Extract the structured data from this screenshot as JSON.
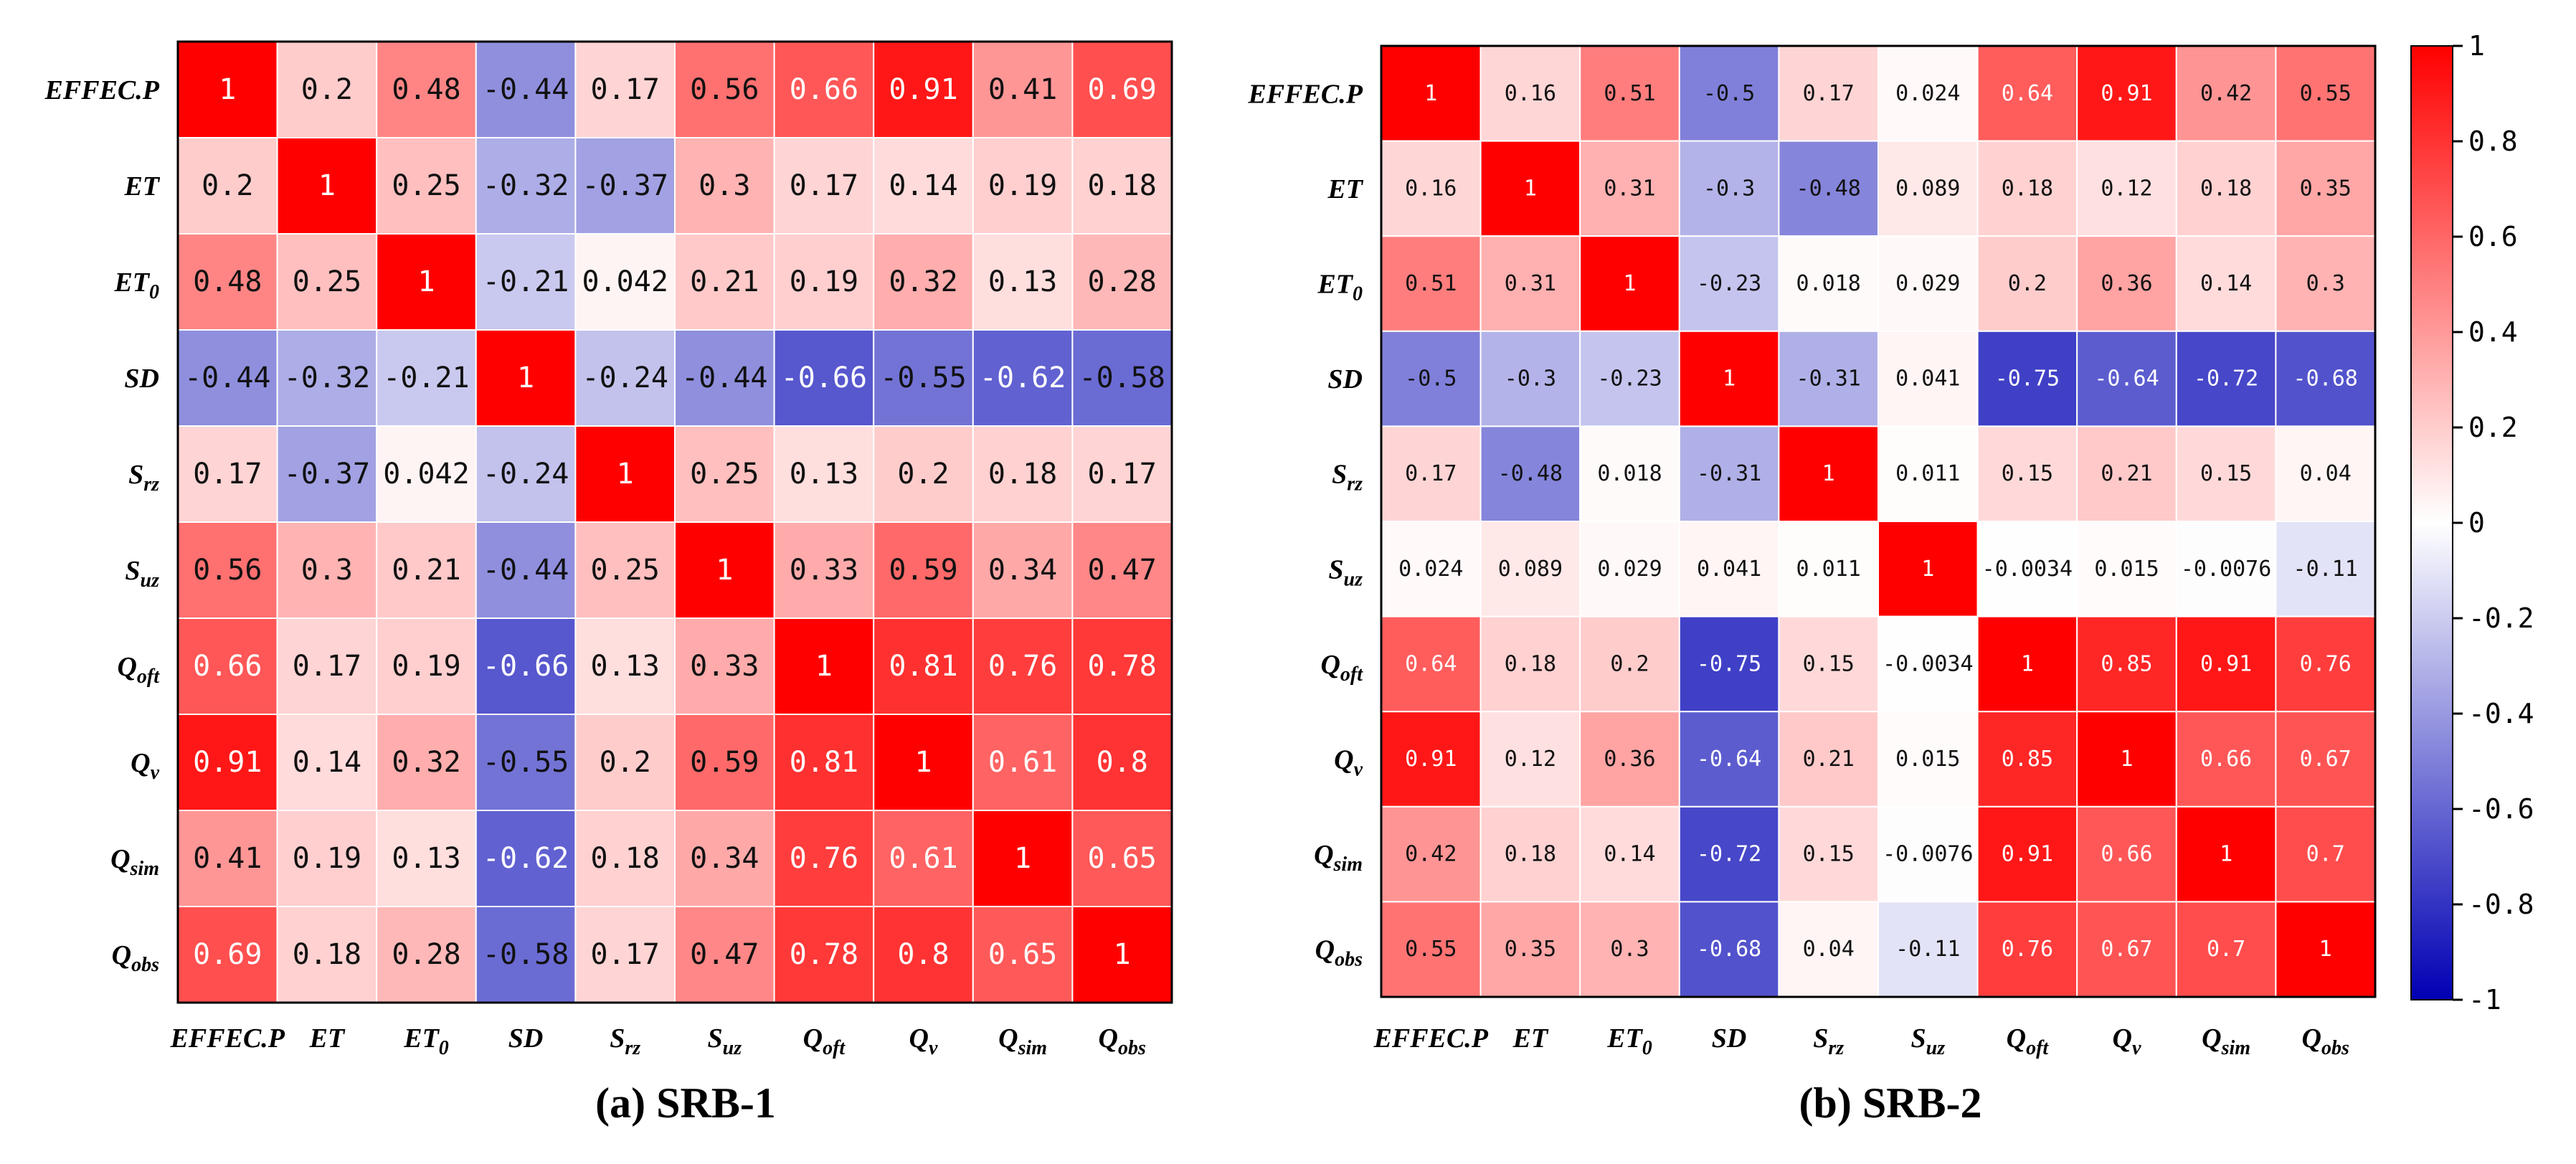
{
  "chart_data": [
    {
      "type": "heatmap",
      "id": "srb1",
      "title": "(a) SRB-1",
      "row_labels": [
        "EFFEC.P",
        "ET",
        "ET0",
        "SD",
        "Srz",
        "Suz",
        "Qoft",
        "Qv",
        "Qsim",
        "Qobs"
      ],
      "col_labels": [
        "EFFEC.P",
        "ET",
        "ET0",
        "SD",
        "Srz",
        "Suz",
        "Qoft",
        "Qv",
        "Qsim",
        "Qobs"
      ],
      "values": [
        [
          1,
          0.2,
          0.48,
          -0.44,
          0.17,
          0.56,
          0.66,
          0.91,
          0.41,
          0.69
        ],
        [
          0.2,
          1,
          0.25,
          -0.32,
          -0.37,
          0.3,
          0.17,
          0.14,
          0.19,
          0.18
        ],
        [
          0.48,
          0.25,
          1,
          -0.21,
          0.042,
          0.21,
          0.19,
          0.32,
          0.13,
          0.28
        ],
        [
          -0.44,
          -0.32,
          -0.21,
          1,
          -0.24,
          -0.44,
          -0.66,
          -0.55,
          -0.62,
          -0.58
        ],
        [
          0.17,
          -0.37,
          0.042,
          -0.24,
          1,
          0.25,
          0.13,
          0.2,
          0.18,
          0.17
        ],
        [
          0.56,
          0.3,
          0.21,
          -0.44,
          0.25,
          1,
          0.33,
          0.59,
          0.34,
          0.47
        ],
        [
          0.66,
          0.17,
          0.19,
          -0.66,
          0.13,
          0.33,
          1,
          0.81,
          0.76,
          0.78
        ],
        [
          0.91,
          0.14,
          0.32,
          -0.55,
          0.2,
          0.59,
          0.81,
          1,
          0.61,
          0.8
        ],
        [
          0.41,
          0.19,
          0.13,
          -0.62,
          0.18,
          0.34,
          0.76,
          0.61,
          1,
          0.65
        ],
        [
          0.69,
          0.18,
          0.28,
          -0.58,
          0.17,
          0.47,
          0.78,
          0.8,
          0.65,
          1
        ]
      ],
      "vmin": -1,
      "vmax": 1
    },
    {
      "type": "heatmap",
      "id": "srb2",
      "title": "(b) SRB-2",
      "row_labels": [
        "EFFEC.P",
        "ET",
        "ET0",
        "SD",
        "Srz",
        "Suz",
        "Qoft",
        "Qv",
        "Qsim",
        "Qobs"
      ],
      "col_labels": [
        "EFFEC.P",
        "ET",
        "ET0",
        "SD",
        "Srz",
        "Suz",
        "Qoft",
        "Qv",
        "Qsim",
        "Qobs"
      ],
      "values": [
        [
          1,
          0.16,
          0.51,
          -0.5,
          0.17,
          0.024,
          0.64,
          0.91,
          0.42,
          0.55
        ],
        [
          0.16,
          1,
          0.31,
          -0.3,
          -0.48,
          0.089,
          0.18,
          0.12,
          0.18,
          0.35
        ],
        [
          0.51,
          0.31,
          1,
          -0.23,
          0.018,
          0.029,
          0.2,
          0.36,
          0.14,
          0.3
        ],
        [
          -0.5,
          -0.3,
          -0.23,
          1,
          -0.31,
          0.041,
          -0.75,
          -0.64,
          -0.72,
          -0.68
        ],
        [
          0.17,
          -0.48,
          0.018,
          -0.31,
          1,
          0.011,
          0.15,
          0.21,
          0.15,
          0.04
        ],
        [
          0.024,
          0.089,
          0.029,
          0.041,
          0.011,
          1,
          -0.0034,
          0.015,
          -0.0076,
          -0.11
        ],
        [
          0.64,
          0.18,
          0.2,
          -0.75,
          0.15,
          -0.0034,
          1,
          0.85,
          0.91,
          0.76
        ],
        [
          0.91,
          0.12,
          0.36,
          -0.64,
          0.21,
          0.015,
          0.85,
          1,
          0.66,
          0.67
        ],
        [
          0.42,
          0.18,
          0.14,
          -0.72,
          0.15,
          -0.0076,
          0.91,
          0.66,
          1,
          0.7
        ],
        [
          0.55,
          0.35,
          0.3,
          -0.68,
          0.04,
          -0.11,
          0.76,
          0.67,
          0.7,
          1
        ]
      ],
      "vmin": -1,
      "vmax": 1
    }
  ],
  "colorbar": {
    "ticks": [
      "1",
      "0.8",
      "0.6",
      "0.4",
      "0.2",
      "0",
      "-0.2",
      "-0.4",
      "-0.6",
      "-0.8",
      "-1"
    ],
    "tick_values": [
      1,
      0.8,
      0.6,
      0.4,
      0.2,
      0,
      -0.2,
      -0.4,
      -0.6,
      -0.8,
      -1
    ],
    "colors": {
      "low": "#0000b4",
      "mid": "#ffffff",
      "high": "#ff0000"
    }
  }
}
